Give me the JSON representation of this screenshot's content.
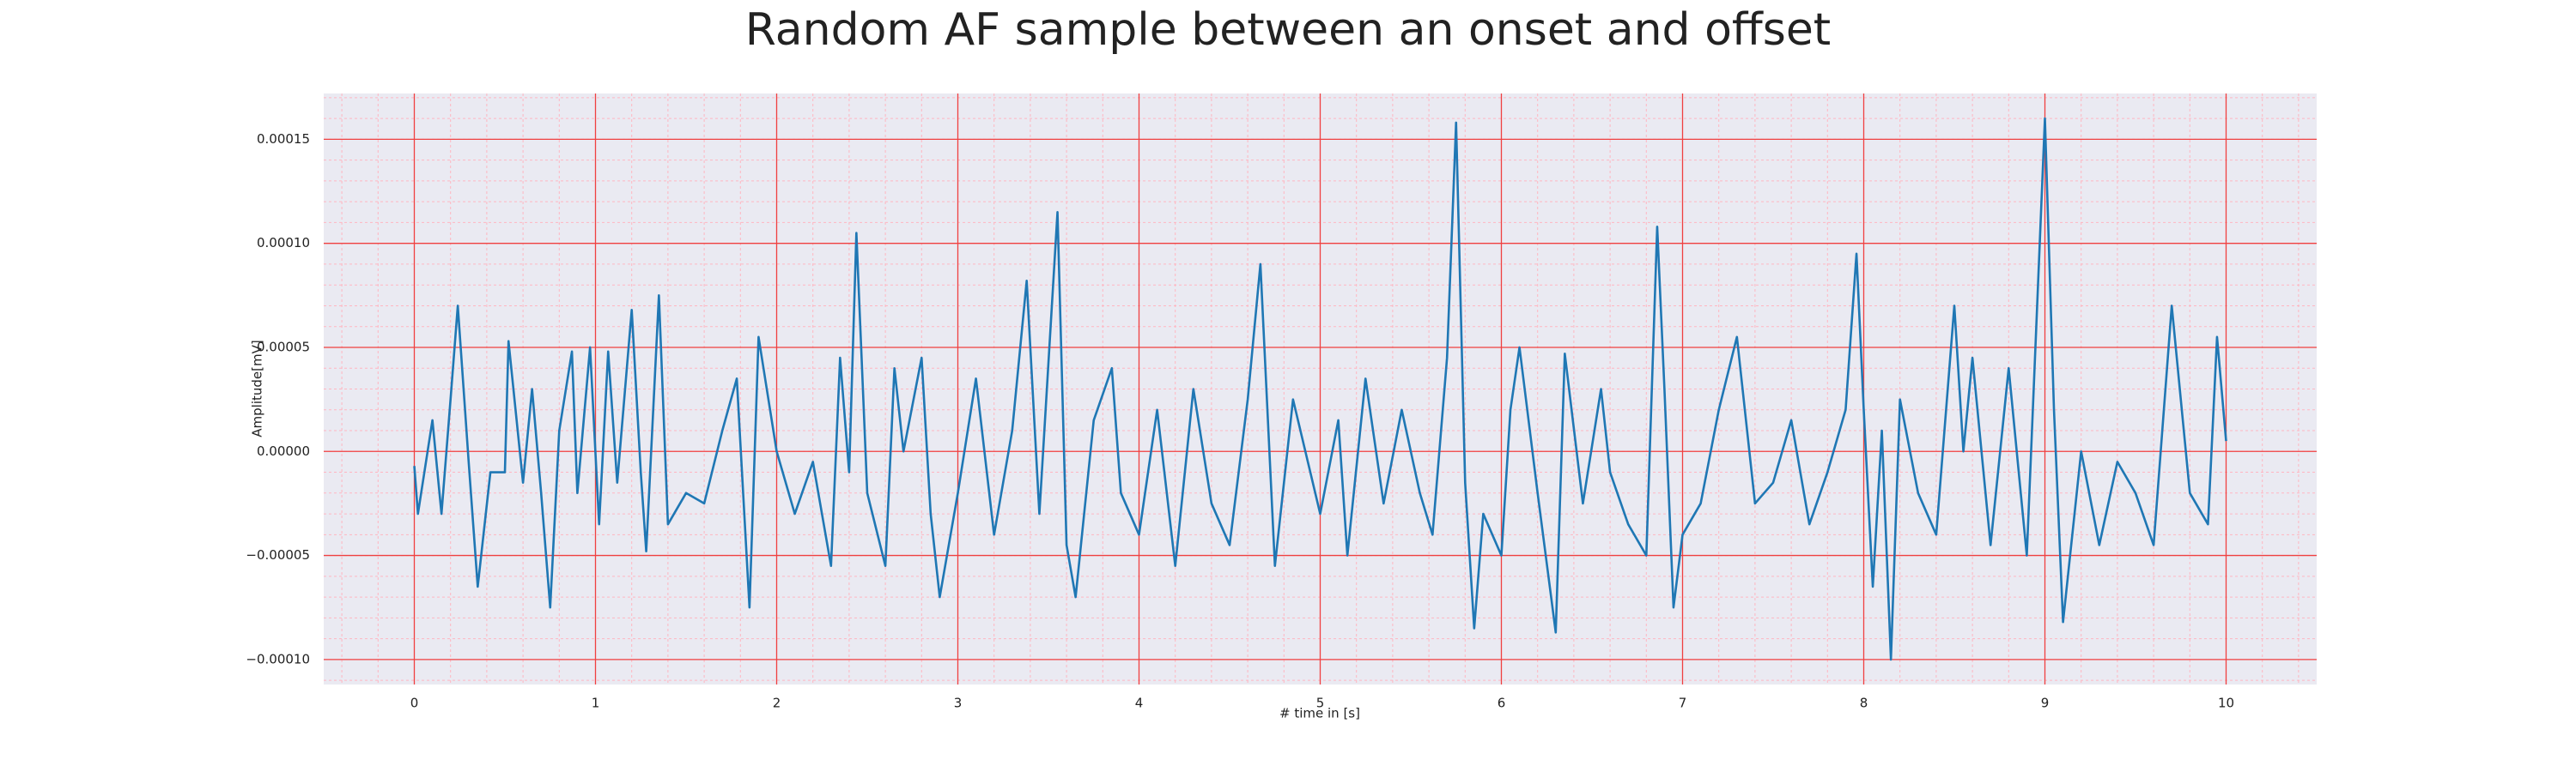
{
  "chart_data": {
    "type": "line",
    "title": "Random AF sample between an onset and offset",
    "xlabel": "# time in [s]",
    "ylabel": "Amplitude[mV]",
    "x": [
      0,
      0.02,
      0.1,
      0.15,
      0.2,
      0.24,
      0.3,
      0.35,
      0.42,
      0.5,
      0.52,
      0.6,
      0.65,
      0.7,
      0.75,
      0.8,
      0.87,
      0.9,
      0.97,
      1.02,
      1.07,
      1.12,
      1.2,
      1.25,
      1.28,
      1.35,
      1.4,
      1.5,
      1.6,
      1.7,
      1.78,
      1.85,
      1.9,
      2.0,
      2.1,
      2.2,
      2.3,
      2.35,
      2.4,
      2.44,
      2.5,
      2.6,
      2.65,
      2.7,
      2.8,
      2.85,
      2.9,
      3.0,
      3.1,
      3.2,
      3.3,
      3.38,
      3.45,
      3.55,
      3.6,
      3.65,
      3.75,
      3.85,
      3.9,
      4.0,
      4.1,
      4.2,
      4.3,
      4.4,
      4.5,
      4.6,
      4.67,
      4.75,
      4.85,
      5.0,
      5.1,
      5.15,
      5.25,
      5.35,
      5.45,
      5.55,
      5.62,
      5.7,
      5.75,
      5.8,
      5.85,
      5.9,
      6.0,
      6.05,
      6.1,
      6.2,
      6.3,
      6.35,
      6.45,
      6.55,
      6.6,
      6.7,
      6.8,
      6.86,
      6.9,
      6.95,
      7.0,
      7.1,
      7.2,
      7.3,
      7.4,
      7.5,
      7.6,
      7.7,
      7.8,
      7.9,
      7.96,
      8.0,
      8.05,
      8.1,
      8.15,
      8.2,
      8.3,
      8.4,
      8.5,
      8.55,
      8.6,
      8.7,
      8.8,
      8.9,
      9.0,
      9.05,
      9.1,
      9.2,
      9.3,
      9.4,
      9.5,
      9.6,
      9.7,
      9.8,
      9.9,
      9.95,
      10.0
    ],
    "values": [
      -7e-06,
      -3e-05,
      1.5e-05,
      -3e-05,
      2.5e-05,
      7e-05,
      -5e-06,
      -6.5e-05,
      -1e-05,
      -1e-05,
      5.3e-05,
      -1.5e-05,
      3e-05,
      -2e-05,
      -7.5e-05,
      1e-05,
      4.8e-05,
      -2e-05,
      5e-05,
      -3.5e-05,
      4.8e-05,
      -1.5e-05,
      6.8e-05,
      -1e-05,
      -4.8e-05,
      7.5e-05,
      -3.5e-05,
      -2e-05,
      -2.5e-05,
      1e-05,
      3.5e-05,
      -7.5e-05,
      5.5e-05,
      0,
      -3e-05,
      -5e-06,
      -5.5e-05,
      4.5e-05,
      -1e-05,
      0.000105,
      -2e-05,
      -5.5e-05,
      4e-05,
      0,
      4.5e-05,
      -3e-05,
      -7e-05,
      -2e-05,
      3.5e-05,
      -4e-05,
      1e-05,
      8.2e-05,
      -3e-05,
      0.000115,
      -4.5e-05,
      -7e-05,
      1.5e-05,
      4e-05,
      -2e-05,
      -4e-05,
      2e-05,
      -5.5e-05,
      3e-05,
      -2.5e-05,
      -4.5e-05,
      2.5e-05,
      9e-05,
      -5.5e-05,
      2.5e-05,
      -3e-05,
      1.5e-05,
      -5e-05,
      3.5e-05,
      -2.5e-05,
      2e-05,
      -2e-05,
      -4e-05,
      4.5e-05,
      0.000158,
      -1.5e-05,
      -8.5e-05,
      -3e-05,
      -5e-05,
      2e-05,
      5e-05,
      -2e-05,
      -8.7e-05,
      4.7e-05,
      -2.5e-05,
      3e-05,
      -1e-05,
      -3.5e-05,
      -5e-05,
      0.000108,
      3e-05,
      -7.5e-05,
      -4e-05,
      -2.5e-05,
      2e-05,
      5.5e-05,
      -2.5e-05,
      -1.5e-05,
      1.5e-05,
      -3.5e-05,
      -1e-05,
      2e-05,
      9.5e-05,
      2e-05,
      -6.5e-05,
      1e-05,
      -0.0001,
      2.5e-05,
      -2e-05,
      -4e-05,
      7e-05,
      0,
      4.5e-05,
      -4.5e-05,
      4e-05,
      -5e-05,
      0.00016,
      2e-05,
      -8.2e-05,
      0,
      -4.5e-05,
      -5e-06,
      -2e-05,
      -4.5e-05,
      7e-05,
      -2e-05,
      -3.5e-05,
      5.5e-05,
      5e-06
    ],
    "color": "#1f77b4",
    "xlim": [
      -0.5,
      10.5
    ],
    "xticks": [
      0,
      1,
      2,
      3,
      4,
      5,
      6,
      7,
      8,
      9,
      10
    ],
    "ylim": [
      -0.000112,
      0.000172
    ],
    "yticks": [
      {
        "value": -0.0001,
        "label": "−0.00010"
      },
      {
        "value": -5e-05,
        "label": "−0.00005"
      },
      {
        "value": 0,
        "label": "0.00000"
      },
      {
        "value": 5e-05,
        "label": "0.00005"
      },
      {
        "value": 0.0001,
        "label": "0.00010"
      },
      {
        "value": 0.00015,
        "label": "0.00015"
      }
    ],
    "grid": true,
    "minor_grid": true
  }
}
